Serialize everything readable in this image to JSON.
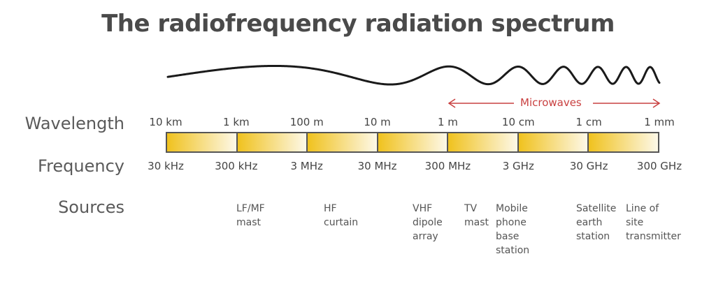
{
  "title": "The radiofrequency radiation spectrum",
  "row_labels": {
    "wavelength": "Wavelength",
    "frequency": "Frequency",
    "sources": "Sources"
  },
  "wavelengths": [
    "10 km",
    "1 km",
    "100 m",
    "10 m",
    "1 m",
    "10 cm",
    "1 cm",
    "1 mm"
  ],
  "frequencies": [
    "30 kHz",
    "300 kHz",
    "3 MHz",
    "30 MHz",
    "300 MHz",
    "3 GHz",
    "30 GHz",
    "300 GHz"
  ],
  "microwaves_label": "Microwaves",
  "sources": [
    [
      "LF/MF",
      "mast"
    ],
    [
      "HF",
      "curtain"
    ],
    [
      "VHF",
      "dipole",
      "array"
    ],
    [
      "TV",
      "mast"
    ],
    [
      "Mobile",
      "phone",
      "base",
      "station"
    ],
    [
      "Satellite",
      "earth",
      "station"
    ],
    [
      "Line of",
      "site",
      "transmitter"
    ]
  ],
  "colors": {
    "band_start": "#f0c21e",
    "band_end": "#fdf8e8",
    "wave": "#1a1a1a",
    "microwave": "#c94040",
    "border": "#555555"
  }
}
